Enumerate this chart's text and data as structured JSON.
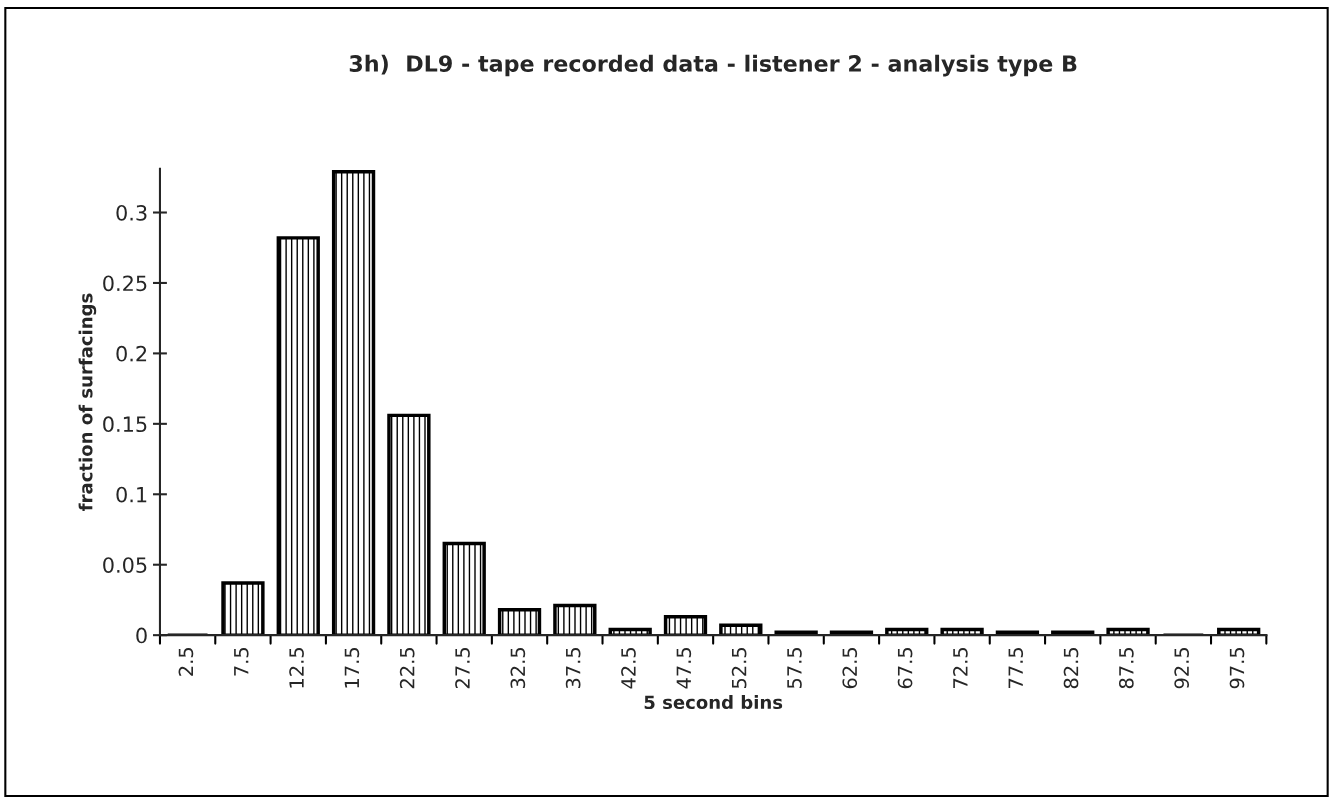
{
  "chart_data": {
    "type": "bar",
    "title": "3h)  DL9 - tape recorded data - listener 2 - analysis type B",
    "xlabel": "5 second bins",
    "ylabel": "fraction of surfacings",
    "categories": [
      "2.5",
      "7.5",
      "12.5",
      "17.5",
      "22.5",
      "27.5",
      "32.5",
      "37.5",
      "42.5",
      "47.5",
      "52.5",
      "57.5",
      "62.5",
      "67.5",
      "72.5",
      "77.5",
      "82.5",
      "87.5",
      "92.5",
      "97.5"
    ],
    "values": [
      0,
      0.037,
      0.282,
      0.329,
      0.156,
      0.065,
      0.018,
      0.021,
      0.004,
      0.013,
      0.007,
      0.002,
      0.002,
      0.004,
      0.004,
      0.002,
      0.002,
      0.004,
      0,
      0.004
    ],
    "color": "#000000",
    "ylim": [
      0,
      0.331
    ],
    "yticks": [
      0,
      0.05,
      0.1,
      0.15,
      0.2,
      0.25,
      0.3
    ],
    "grid": false,
    "legend": false
  }
}
